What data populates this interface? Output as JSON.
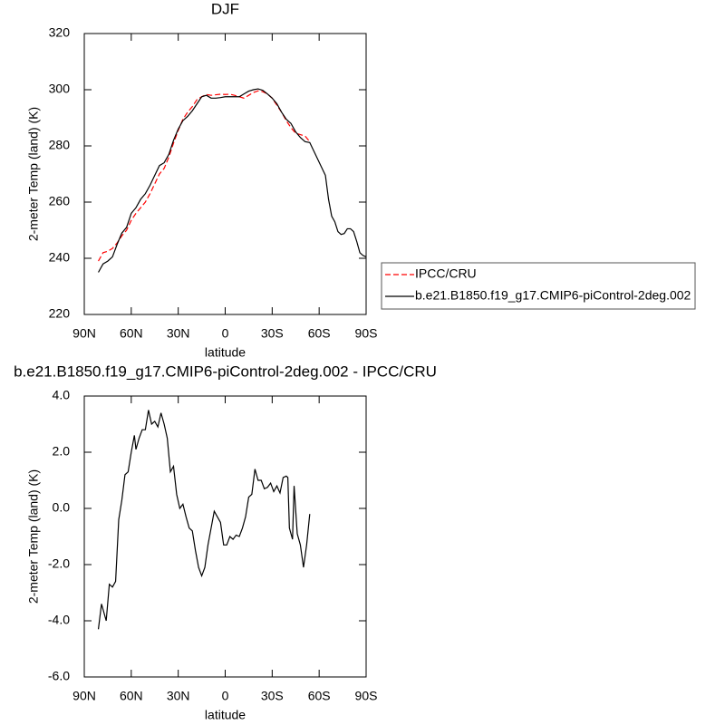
{
  "chart_data": [
    {
      "type": "line",
      "title": "DJF",
      "xlabel": "latitude",
      "ylabel": "2-meter Temp (land) (K)",
      "x": [
        81,
        78,
        75,
        72,
        69,
        66,
        63,
        60,
        57,
        54,
        51,
        48,
        45,
        42,
        39,
        36,
        33,
        30,
        27,
        24,
        21,
        18,
        15,
        12,
        9,
        6,
        3,
        0,
        -3,
        -6,
        -9,
        -12,
        -15,
        -18,
        -21,
        -24,
        -27,
        -30,
        -33,
        -36,
        -39,
        -42,
        -45,
        -48,
        -51,
        -54,
        -64,
        -66,
        -68,
        -70,
        -72,
        -74,
        -76,
        -78,
        -80,
        -82,
        -84,
        -86,
        -88,
        -90
      ],
      "series": [
        {
          "name": "IPCC/CRU",
          "color": "#ff0000",
          "dash": true,
          "values": [
            239,
            242,
            242.5,
            243.5,
            245.5,
            248,
            250,
            253.5,
            256,
            258,
            260,
            263,
            266.5,
            270,
            272,
            276,
            281,
            285.5,
            289.5,
            292,
            294,
            296.5,
            297.5,
            298.3,
            298,
            298.2,
            298.4,
            298.3,
            298.4,
            298,
            297.5,
            297,
            298,
            299,
            299.6,
            299.3,
            298.5,
            297,
            294.5,
            292,
            289,
            286.5,
            284.5,
            284,
            283.5,
            281.5,
            null,
            null,
            null,
            null,
            null,
            null,
            null,
            null,
            null,
            null,
            null,
            null,
            null,
            null
          ]
        },
        {
          "name": "b.e21.B1850.f19_g17.CMIP6-piControl-2deg.002",
          "color": "#000000",
          "dash": false,
          "values": [
            235,
            238,
            239,
            240.5,
            245,
            249,
            251,
            256,
            258,
            261,
            263,
            266,
            269.5,
            273,
            274,
            277,
            282,
            286,
            289,
            290.5,
            292.5,
            295,
            297.5,
            298,
            297,
            297,
            297.2,
            297.5,
            297.5,
            297.5,
            297.5,
            298.5,
            299.5,
            300,
            300.3,
            299.8,
            298.5,
            297,
            295,
            292,
            289.5,
            288,
            285,
            283,
            281.5,
            281.2,
            269.5,
            261,
            255,
            253,
            249.5,
            248.5,
            248.8,
            250.5,
            250.5,
            249.5,
            246,
            242,
            241,
            240.5
          ]
        }
      ],
      "xlim": [
        90,
        -90
      ],
      "xticks": [
        {
          "value": 90,
          "label": "90N"
        },
        {
          "value": 60,
          "label": "60N"
        },
        {
          "value": 30,
          "label": "30N"
        },
        0,
        {
          "value": -30,
          "label": "30S"
        },
        {
          "value": -60,
          "label": "60S"
        },
        {
          "value": -90,
          "label": "90S"
        }
      ],
      "ylim": [
        220,
        320
      ],
      "yticks": [
        220,
        240,
        260,
        280,
        300,
        320
      ],
      "legend": "right"
    },
    {
      "type": "line",
      "title": "b.e21.B1850.f19_g17.CMIP6-piControl-2deg.002 - IPCC/CRU",
      "xlabel": "latitude",
      "ylabel": "2-meter Temp (land) (K)",
      "x": [
        81,
        79,
        76,
        74,
        72,
        70,
        68,
        66,
        64,
        62,
        60,
        58,
        57,
        55,
        53,
        51,
        49,
        47,
        45,
        43,
        41,
        39,
        37,
        35,
        33,
        31,
        29,
        27,
        25,
        23,
        21,
        19,
        17,
        15,
        13,
        11,
        9,
        7,
        5,
        3,
        1,
        -1,
        -3,
        -5,
        -7,
        -9,
        -11,
        -13,
        -15,
        -17,
        -19,
        -21,
        -23,
        -25,
        -27,
        -29,
        -31,
        -33,
        -35,
        -37,
        -39,
        -40,
        -41,
        -43,
        -44,
        -46,
        -48,
        -50,
        -52,
        -54
      ],
      "series": [
        {
          "color": "#000000",
          "dash": false,
          "values": [
            -4.3,
            -3.4,
            -4.0,
            -2.7,
            -2.8,
            -2.6,
            -0.4,
            0.3,
            1.2,
            1.3,
            2.0,
            2.6,
            2.1,
            2.5,
            2.8,
            2.8,
            3.5,
            3.0,
            3.1,
            2.9,
            3.4,
            3.0,
            2.5,
            1.3,
            1.5,
            0.5,
            0.0,
            0.15,
            -0.3,
            -0.7,
            -0.8,
            -1.5,
            -2.1,
            -2.4,
            -2.1,
            -1.3,
            -0.7,
            -0.1,
            -0.3,
            -0.5,
            -1.3,
            -1.3,
            -1.0,
            -1.1,
            -0.95,
            -1.0,
            -0.7,
            -0.3,
            0.4,
            0.5,
            1.4,
            1.0,
            1.0,
            0.7,
            0.75,
            0.9,
            0.6,
            0.8,
            0.55,
            1.1,
            1.15,
            1.1,
            -0.7,
            -1.1,
            0.8,
            -0.9,
            -1.3,
            -2.1,
            -1.3,
            -0.2
          ]
        }
      ],
      "xlim": [
        90,
        -90
      ],
      "xticks": [
        {
          "value": 90,
          "label": "90N"
        },
        {
          "value": 60,
          "label": "60N"
        },
        {
          "value": 30,
          "label": "30N"
        },
        0,
        {
          "value": -30,
          "label": "30S"
        },
        {
          "value": -60,
          "label": "60S"
        },
        {
          "value": -90,
          "label": "90S"
        }
      ],
      "ylim": [
        -6,
        4
      ],
      "yticks": [
        {
          "value": -6,
          "label": "-6.0"
        },
        {
          "value": -4,
          "label": "-4.0"
        },
        {
          "value": -2,
          "label": "-2.0"
        },
        {
          "value": 0,
          "label": "0.0"
        },
        {
          "value": 2,
          "label": "2.0"
        },
        {
          "value": 4,
          "label": "4.0"
        }
      ]
    }
  ]
}
